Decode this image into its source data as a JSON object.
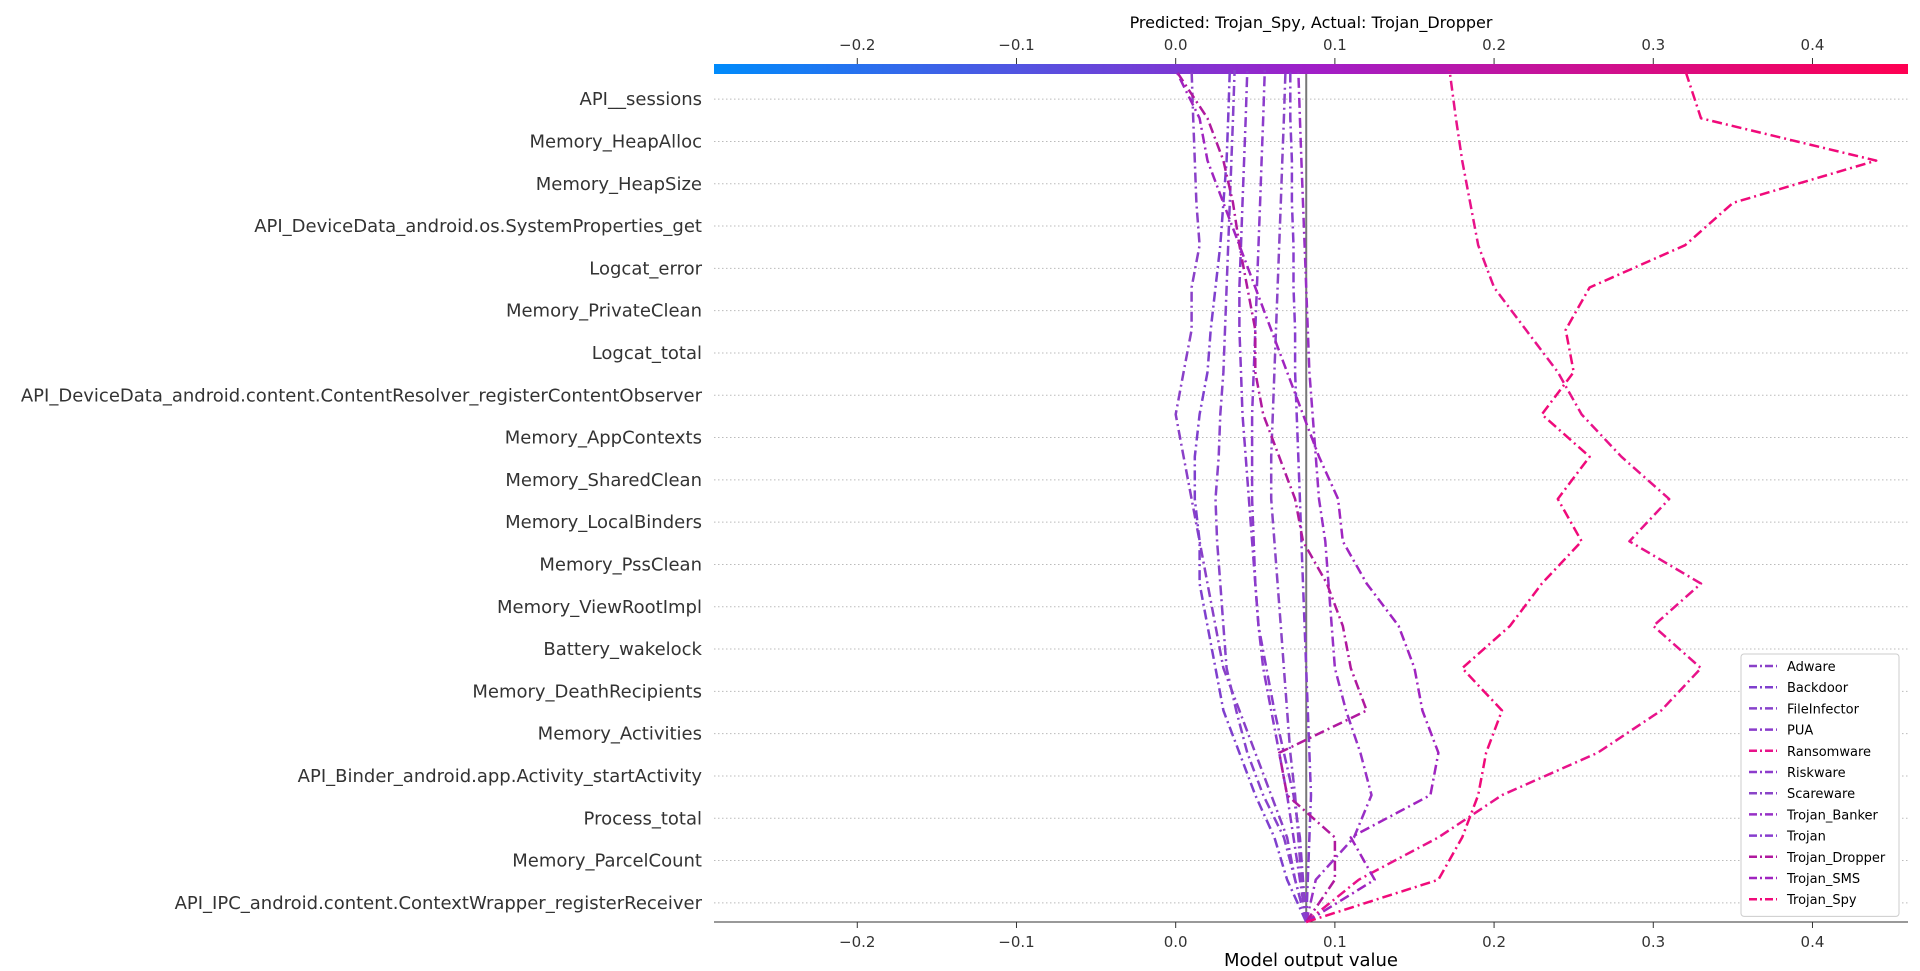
{
  "chart_data": {
    "type": "line",
    "title": "Predicted: Trojan_Spy, Actual: Trojan_Dropper",
    "xlabel": "Model output value",
    "ylabel": "",
    "xlim": [
      -0.29,
      0.46
    ],
    "x_ticks": [
      -0.2,
      -0.1,
      0.0,
      0.1,
      0.2,
      0.3,
      0.4
    ],
    "x_tick_labels": [
      "−0.2",
      "−0.1",
      "0.0",
      "0.1",
      "0.2",
      "0.3",
      "0.4"
    ],
    "base_value": 0.082,
    "grid": true,
    "legend_position": "bottom-right",
    "colorbar": {
      "from": "#008bfb",
      "mid": "#a01fc8",
      "to": "#ff0052"
    },
    "features": [
      "API__sessions",
      "Memory_HeapAlloc",
      "Memory_HeapSize",
      "API_DeviceData_android.os.SystemProperties_get",
      "Logcat_error",
      "Memory_PrivateClean",
      "Logcat_total",
      "API_DeviceData_android.content.ContentResolver_registerContentObserver",
      "Memory_AppContexts",
      "Memory_SharedClean",
      "Memory_LocalBinders",
      "Memory_PssClean",
      "Memory_ViewRootImpl",
      "Battery_wakelock",
      "Memory_DeathRecipients",
      "Memory_Activities",
      "API_Binder_android.app.Activity_startActivity",
      "Process_total",
      "Memory_ParcelCount",
      "API_IPC_android.content.ContextWrapper_registerReceiver"
    ],
    "series": [
      {
        "name": "Adware",
        "color": "#8a40c8",
        "values": [
          0.082,
          0.075,
          0.07,
          0.06,
          0.05,
          0.04,
          0.03,
          0.025,
          0.02,
          0.015,
          0.01,
          0.005,
          0.0,
          0.005,
          0.01,
          0.01,
          0.015,
          0.013,
          0.012,
          0.011,
          0.01
        ]
      },
      {
        "name": "Backdoor",
        "color": "#7f3fce",
        "values": [
          0.082,
          0.07,
          0.062,
          0.05,
          0.04,
          0.03,
          0.025,
          0.02,
          0.015,
          0.015,
          0.012,
          0.012,
          0.015,
          0.02,
          0.022,
          0.025,
          0.028,
          0.03,
          0.032,
          0.033,
          0.034
        ]
      },
      {
        "name": "FileInfector",
        "color": "#8842cc",
        "values": [
          0.082,
          0.075,
          0.068,
          0.055,
          0.045,
          0.038,
          0.032,
          0.03,
          0.028,
          0.026,
          0.025,
          0.027,
          0.028,
          0.03,
          0.031,
          0.032,
          0.033,
          0.034,
          0.035,
          0.036,
          0.037
        ]
      },
      {
        "name": "PUA",
        "color": "#8a3ccb",
        "values": [
          0.082,
          0.08,
          0.078,
          0.074,
          0.068,
          0.062,
          0.057,
          0.052,
          0.05,
          0.048,
          0.046,
          0.044,
          0.042,
          0.041,
          0.04,
          0.04,
          0.041,
          0.042,
          0.043,
          0.044,
          0.045
        ]
      },
      {
        "name": "Ransomware",
        "color": "#e8128a",
        "values": [
          0.082,
          0.115,
          0.165,
          0.205,
          0.265,
          0.305,
          0.33,
          0.3,
          0.33,
          0.285,
          0.31,
          0.28,
          0.255,
          0.24,
          0.22,
          0.2,
          0.19,
          0.185,
          0.18,
          0.176,
          0.172
        ]
      },
      {
        "name": "Riskware",
        "color": "#8d3ccc",
        "values": [
          0.082,
          0.078,
          0.074,
          0.07,
          0.065,
          0.06,
          0.055,
          0.052,
          0.05,
          0.049,
          0.048,
          0.048,
          0.048,
          0.049,
          0.05,
          0.051,
          0.052,
          0.053,
          0.054,
          0.055,
          0.056
        ]
      },
      {
        "name": "Scareware",
        "color": "#8a44c8",
        "values": [
          0.082,
          0.079,
          0.077,
          0.075,
          0.072,
          0.07,
          0.068,
          0.066,
          0.064,
          0.062,
          0.06,
          0.06,
          0.061,
          0.062,
          0.063,
          0.064,
          0.065,
          0.066,
          0.067,
          0.068,
          0.069
        ]
      },
      {
        "name": "Trojan_Banker",
        "color": "#9830c6",
        "values": [
          0.082,
          0.088,
          0.112,
          0.123,
          0.116,
          0.107,
          0.1,
          0.098,
          0.096,
          0.094,
          0.09,
          0.088,
          0.086,
          0.084,
          0.083,
          0.082,
          0.081,
          0.08,
          0.079,
          0.078,
          0.077
        ]
      },
      {
        "name": "Trojan",
        "color": "#883dce",
        "values": [
          0.082,
          0.083,
          0.084,
          0.085,
          0.084,
          0.083,
          0.082,
          0.081,
          0.08,
          0.079,
          0.078,
          0.077,
          0.076,
          0.075,
          0.075,
          0.074,
          0.074,
          0.073,
          0.073,
          0.072,
          0.072
        ]
      },
      {
        "name": "Trojan_Dropper",
        "color": "#b0199e",
        "values": [
          0.082,
          0.1,
          0.1,
          0.07,
          0.065,
          0.12,
          0.11,
          0.105,
          0.095,
          0.08,
          0.075,
          0.065,
          0.055,
          0.05,
          0.05,
          0.045,
          0.04,
          0.036,
          0.03,
          0.02,
          0.0
        ]
      },
      {
        "name": "Trojan_SMS",
        "color": "#a024c0",
        "values": [
          0.082,
          0.125,
          0.11,
          0.16,
          0.165,
          0.155,
          0.15,
          0.14,
          0.12,
          0.105,
          0.102,
          0.09,
          0.08,
          0.07,
          0.06,
          0.05,
          0.04,
          0.03,
          0.02,
          0.015,
          0.0
        ]
      },
      {
        "name": "Trojan_Spy",
        "color": "#f00a7a",
        "values": [
          0.082,
          0.165,
          0.18,
          0.19,
          0.195,
          0.205,
          0.18,
          0.21,
          0.23,
          0.255,
          0.24,
          0.26,
          0.23,
          0.25,
          0.245,
          0.26,
          0.32,
          0.35,
          0.44,
          0.33,
          0.32
        ]
      }
    ]
  }
}
